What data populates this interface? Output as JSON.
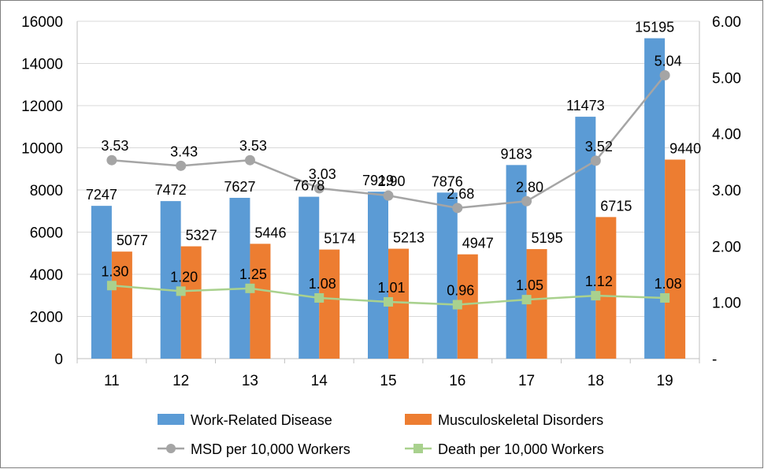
{
  "chart_data": {
    "type": "bar",
    "categories": [
      "11",
      "12",
      "13",
      "14",
      "15",
      "16",
      "17",
      "18",
      "19"
    ],
    "series": [
      {
        "name": "Work-Related Disease",
        "type": "bar",
        "axis": "left",
        "color": "#5b9bd5",
        "values": [
          7247,
          7472,
          7627,
          7678,
          7919,
          7876,
          9183,
          11473,
          15195
        ],
        "labels": [
          "7247",
          "7472",
          "7627",
          "7678",
          "7919",
          "7876",
          "9183",
          "11473",
          "15195"
        ]
      },
      {
        "name": "Musculoskeletal Disorders",
        "type": "bar",
        "axis": "left",
        "color": "#ed7d31",
        "values": [
          5077,
          5327,
          5446,
          5174,
          5213,
          4947,
          5195,
          6715,
          9440
        ],
        "labels": [
          "5077",
          "5327",
          "5446",
          "5174",
          "5213",
          "4947",
          "5195",
          "6715",
          "9440"
        ]
      },
      {
        "name": "MSD per 10,000 Workers",
        "type": "line",
        "axis": "right",
        "color": "#a5a5a5",
        "marker": "circle",
        "values": [
          3.53,
          3.43,
          3.53,
          3.03,
          2.9,
          2.68,
          2.8,
          3.52,
          5.04
        ],
        "labels": [
          "3.53",
          "3.43",
          "3.53",
          "3.03",
          "2.90",
          "2.68",
          "2.80",
          "3.52",
          "5.04"
        ]
      },
      {
        "name": "Death per 10,000 Workers",
        "type": "line",
        "axis": "right",
        "color": "#a9d18e",
        "marker": "square",
        "values": [
          1.3,
          1.2,
          1.25,
          1.08,
          1.01,
          0.96,
          1.05,
          1.12,
          1.08
        ],
        "labels": [
          "1.30",
          "1.20",
          "1.25",
          "1.08",
          "1.01",
          "0.96",
          "1.05",
          "1.12",
          "1.08"
        ]
      }
    ],
    "y_left": {
      "min": 0,
      "max": 16000,
      "ticks": [
        "0",
        "2000",
        "4000",
        "6000",
        "8000",
        "10000",
        "12000",
        "14000",
        "16000"
      ]
    },
    "y_right": {
      "min": 0,
      "max": 6,
      "ticks": [
        "-",
        "1.00",
        "2.00",
        "3.00",
        "4.00",
        "5.00",
        "6.00"
      ]
    },
    "grid": true,
    "legend_position": "bottom"
  }
}
